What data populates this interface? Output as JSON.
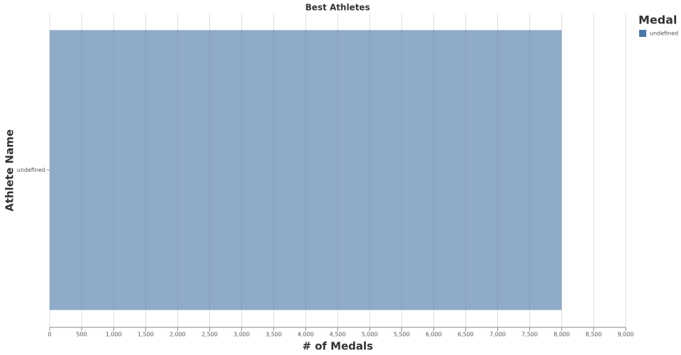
{
  "chart_data": {
    "type": "bar",
    "orientation": "horizontal",
    "title": "Best Athletes",
    "x_label": "# of Medals",
    "y_label": "Athlete Name",
    "categories": [
      "undefined"
    ],
    "series": [
      {
        "name": "undefined",
        "color": "#4c78a8",
        "values": [
          8000
        ]
      }
    ],
    "opacity": 0.62,
    "legend_title": "Medal",
    "legend": "top-right",
    "xlim": [
      0,
      9000
    ],
    "xticks": [
      0,
      500,
      {
        "value": 1000,
        "label": "1,000"
      },
      {
        "value": 1500,
        "label": "1,500"
      },
      {
        "value": 2000,
        "label": "2,000"
      },
      {
        "value": 2500,
        "label": "2,500"
      },
      {
        "value": 3000,
        "label": "3,000"
      },
      {
        "value": 3500,
        "label": "3,500"
      },
      {
        "value": 4000,
        "label": "4,000"
      },
      {
        "value": 4500,
        "label": "4,500"
      },
      {
        "value": 5000,
        "label": "5,000"
      },
      {
        "value": 5500,
        "label": "5,500"
      },
      {
        "value": 6000,
        "label": "6,000"
      },
      {
        "value": 6500,
        "label": "6,500"
      },
      {
        "value": 7000,
        "label": "7,000"
      },
      {
        "value": 7500,
        "label": "7,500"
      },
      {
        "value": 8000,
        "label": "8,000"
      },
      {
        "value": 8500,
        "label": "8,500"
      },
      {
        "value": 9000,
        "label": "9,000"
      }
    ],
    "grid": true
  }
}
